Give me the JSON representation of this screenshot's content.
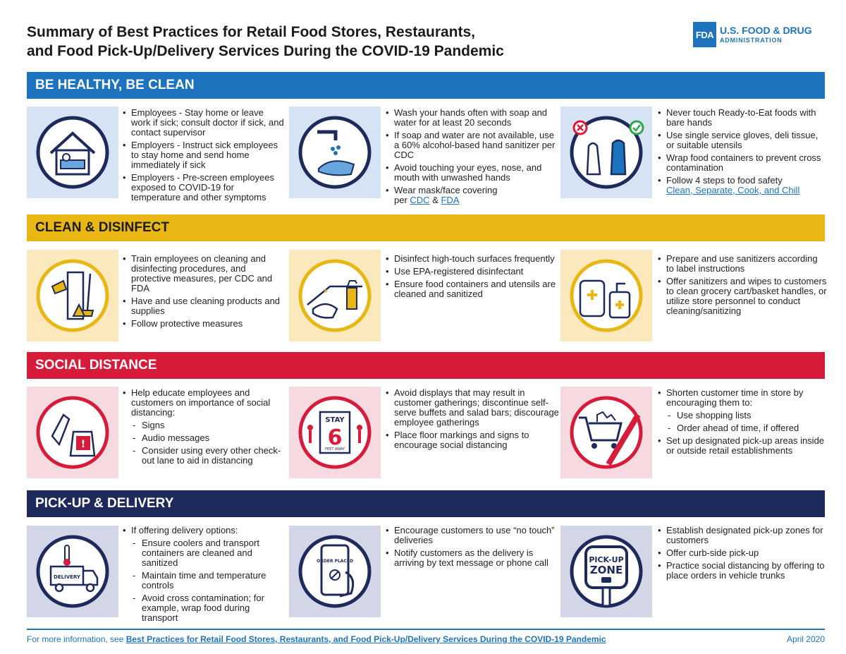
{
  "header": {
    "title_line1": "Summary of Best Practices for Retail Food Stores, Restaurants,",
    "title_line2": "and Food Pick-Up/Delivery Services During the COVID-19 Pandemic",
    "logo_mark": "FDA",
    "logo_line1": "U.S. FOOD & DRUG",
    "logo_line2": "ADMINISTRATION"
  },
  "colors": {
    "blue": "#1e73be",
    "yellow": "#e9b713",
    "red": "#d71b3b",
    "navy": "#1f2a5c"
  },
  "sections": {
    "s1": {
      "title": "BE HEALTHY, BE CLEAN",
      "c1": [
        "Employees - Stay home or leave work if sick; consult doctor if sick, and contact supervisor",
        "Employers - Instruct sick employees to stay home and send home immediately if sick",
        "Employers - Pre-screen employees exposed to COVID-19 for temperature and other symptoms"
      ],
      "c2": [
        "Wash your hands often with soap and water for at least 20 seconds",
        "If soap and water are not available, use a 60% alcohol-based hand sanitizer per CDC",
        "Avoid touching your eyes, nose, and mouth with unwashed hands"
      ],
      "c2_last_prefix": "Wear mask/face covering",
      "c2_last_per": "per ",
      "c2_link1": "CDC",
      "c2_amp": " & ",
      "c2_link2": "FDA",
      "c3": [
        "Never touch Ready-to-Eat foods with bare hands",
        "Use single service gloves, deli tissue, or suitable utensils",
        "Wrap food containers to prevent cross contamination",
        "Follow 4 steps to food safety"
      ],
      "c3_link": "Clean, Separate, Cook, and Chill"
    },
    "s2": {
      "title": "CLEAN & DISINFECT",
      "c1": [
        "Train employees on cleaning and disinfecting procedures, and protective measures, per CDC and FDA",
        "Have and use cleaning products and supplies",
        "Follow protective measures"
      ],
      "c2": [
        "Disinfect high-touch surfaces frequently",
        "Use EPA-registered disinfectant",
        "Ensure food containers and utensils are cleaned and sanitized"
      ],
      "c3": [
        "Prepare and use sanitizers according to label instructions",
        "Offer sanitizers and wipes to customers to clean grocery cart/basket handles, or utilize store personnel to conduct cleaning/sanitizing"
      ]
    },
    "s3": {
      "title": "SOCIAL DISTANCE",
      "c1_intro": "Help educate employees and customers on importance of social distancing:",
      "c1_sub": [
        "Signs",
        "Audio messages",
        "Consider using every other check-out lane to aid in distancing"
      ],
      "c2": [
        "Avoid displays that may result in customer gatherings; discontinue self-serve buffets and salad bars; discourage employee gatherings",
        "Place floor markings and signs to encourage social distancing"
      ],
      "c2_icon_top": "STAY",
      "c2_icon_num": "6",
      "c2_icon_bottom": "FEET AWAY",
      "c3_intro": "Shorten customer time in store by encouraging them to:",
      "c3_sub": [
        "Use shopping lists",
        "Order ahead of time, if offered"
      ],
      "c3_last": "Set up designated pick-up areas inside or outside retail establishments"
    },
    "s4": {
      "title": "PICK-UP & DELIVERY",
      "c1_intro": "If offering delivery options:",
      "c1_sub": [
        "Ensure coolers and transport containers are cleaned and sanitized",
        "Maintain time and temperature controls",
        "Avoid cross contamination; for example, wrap food during transport"
      ],
      "c1_icon": "DELIVERY",
      "c2": [
        "Encourage customers to use “no touch” deliveries",
        "Notify customers as the delivery is arriving by text message or phone call"
      ],
      "c2_icon": "ORDER PLACED",
      "c3": [
        "Establish designated pick-up zones for customers",
        "Offer curb-side pick-up",
        "Practice social distancing by offering to place orders in vehicle trunks"
      ],
      "c3_icon1": "PICK-UP",
      "c3_icon2": "ZONE"
    }
  },
  "footer": {
    "prefix": "For more information, see ",
    "link": "Best Practices for Retail Food Stores, Restaurants, and Food Pick-Up/Delivery Services During the COVID-19 Pandemic",
    "date": "April 2020"
  }
}
